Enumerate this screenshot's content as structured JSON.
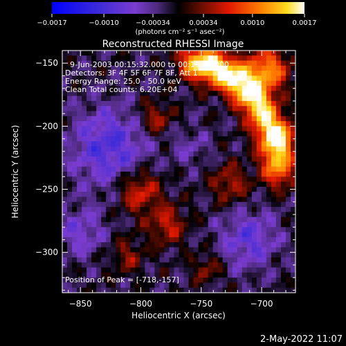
{
  "chart_data": {
    "type": "heatmap",
    "title": "Reconstructed RHESSI Image",
    "xlabel": "Heliocentric X (arcsec)",
    "ylabel": "Heliocentric Y (arcsec)",
    "xlim": [
      -865,
      -672
    ],
    "ylim": [
      -332,
      -140
    ],
    "xticks": [
      -850,
      -800,
      -750,
      -700
    ],
    "yticks": [
      -150,
      -200,
      -250,
      -300
    ],
    "xtick_labels": [
      "−850",
      "−800",
      "−750",
      "−700"
    ],
    "ytick_labels": [
      "−150",
      "−200",
      "−250",
      "−300"
    ],
    "annotations": [
      "9-Jun-2003 00:15:32.000 to 00:19:28.000",
      "Detectors: 3F 4F 5F 6F 7F 8F, Att 1",
      "Energy Range: 25.0 - 50.0 keV",
      "Clean    Total counts: 6.20E+04"
    ],
    "peak_label": "Position of Peak = [-718,-157]",
    "colorbar": {
      "min": -0.0017,
      "max": 0.0017,
      "tick_values": [
        -0.0017,
        -0.001,
        -0.00034,
        0.00034,
        0.001,
        0.0017
      ],
      "tick_labels": [
        "−0.0017",
        "−0.0010",
        "−0.00034",
        "0.00034",
        "0.0010",
        "0.0017"
      ],
      "units": "(photons cm⁻² s⁻¹ asec⁻²)"
    },
    "peak_position": [
      -718,
      -157
    ],
    "colormap": "blue-purple-black-red-yellow-white"
  },
  "footer": {
    "timestamp": "2-May-2022 11:07"
  }
}
